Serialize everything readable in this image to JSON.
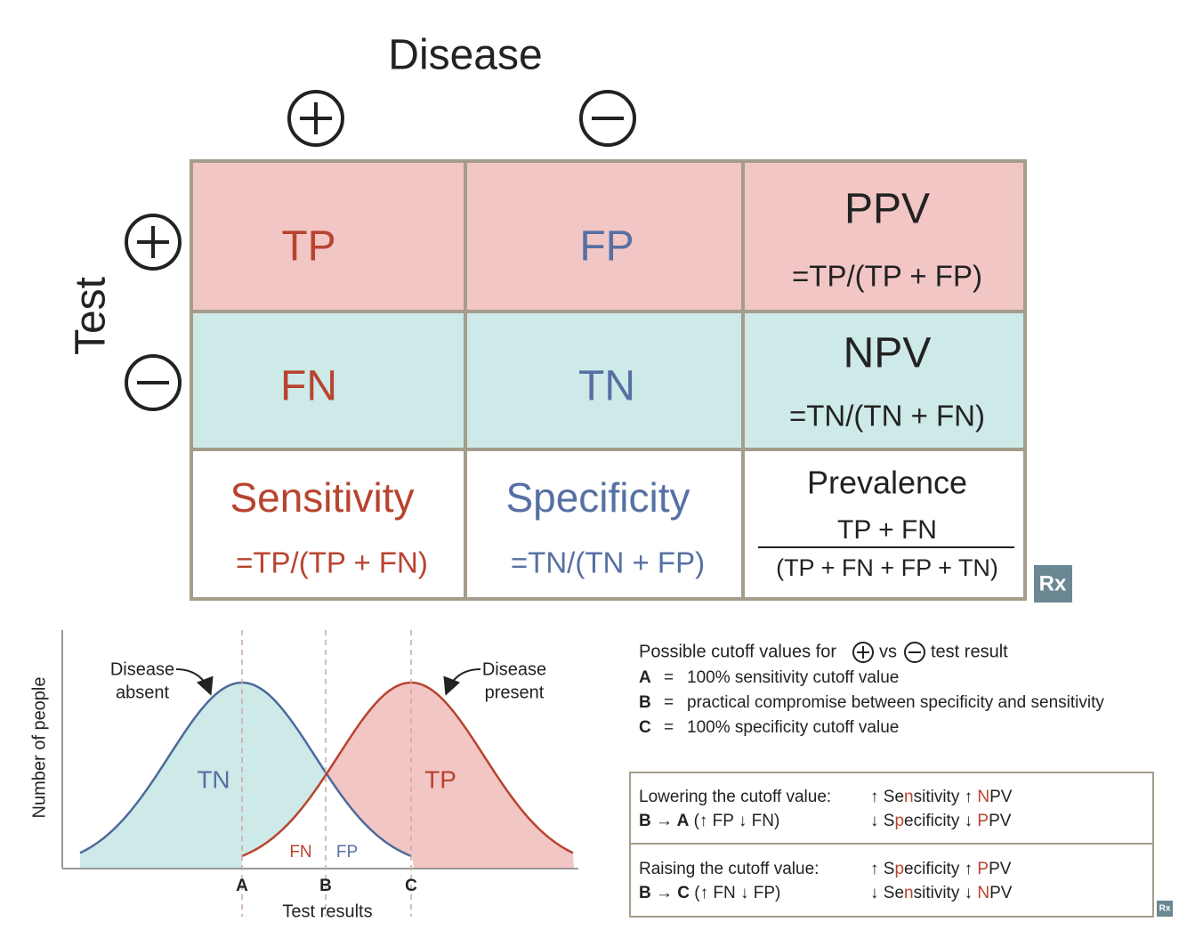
{
  "header": {
    "title": "Disease",
    "row_label": "Test"
  },
  "cells": {
    "tp": "TP",
    "fp": "FP",
    "fn": "FN",
    "tn": "TN"
  },
  "ppv": {
    "label": "PPV",
    "formula": "=TP/(TP + FP)"
  },
  "npv": {
    "label": "NPV",
    "formula": "=TN/(TN + FN)"
  },
  "sensitivity": {
    "label": "Sensitivity",
    "formula": "=TP/(TP + FN)"
  },
  "specificity": {
    "label": "Specificity",
    "formula": "=TN/(TN + FP)"
  },
  "prevalence": {
    "label": "Prevalence",
    "numerator": "TP + FN",
    "denominator": "(TP + FN + FP + TN)"
  },
  "logo": "Rx",
  "graph": {
    "y_label": "Number of people",
    "x_label": "Test results",
    "disease_absent": [
      "Disease",
      "absent"
    ],
    "disease_present": [
      "Disease",
      "present"
    ],
    "regions": {
      "tn": "TN",
      "tp": "TP",
      "fn": "FN",
      "fp": "FP"
    },
    "cutoffs": [
      "A",
      "B",
      "C"
    ]
  },
  "legend": {
    "heading": [
      "Possible cutoff values for",
      "vs",
      "test result"
    ],
    "items": [
      {
        "key": "A",
        "eq": "=",
        "text": "100% sensitivity cutoff value"
      },
      {
        "key": "B",
        "eq": "=",
        "text": "practical compromise between specificity and sensitivity"
      },
      {
        "key": "C",
        "eq": "=",
        "text": "100% specificity cutoff value"
      }
    ]
  },
  "effects": [
    {
      "title": "Lowering the cutoff value:",
      "shift": [
        "B → A",
        " (↑ FP ↓ FN)"
      ],
      "up": [
        "↑ Se",
        "n",
        "sitivity ↑ ",
        "N",
        "PV"
      ],
      "down": [
        "↓ S",
        "p",
        "ecificity ↓ ",
        "P",
        "PV"
      ]
    },
    {
      "title": "Raising the cutoff value:",
      "shift": [
        "B → C",
        " (↑ FN ↓ FP)"
      ],
      "up": [
        "↑ S",
        "p",
        "ecificity ↑ ",
        "P",
        "PV"
      ],
      "down": [
        "↓ Se",
        "n",
        "sitivity ↓ ",
        "N",
        "PV"
      ]
    }
  ]
}
